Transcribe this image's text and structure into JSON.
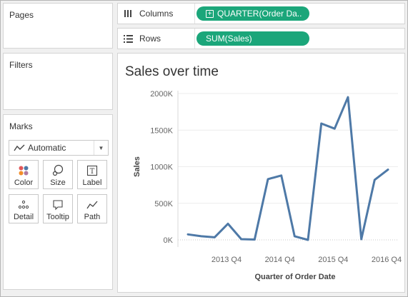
{
  "cards": {
    "pages": {
      "title": "Pages"
    },
    "filters": {
      "title": "Filters"
    },
    "marks": {
      "title": "Marks",
      "mark_type": {
        "label": "Automatic",
        "icon": "line-mark-icon"
      },
      "buttons": [
        {
          "label": "Color",
          "icon": "color-dots-icon"
        },
        {
          "label": "Size",
          "icon": "size-icon"
        },
        {
          "label": "Label",
          "icon": "label-icon"
        },
        {
          "label": "Detail",
          "icon": "detail-icon"
        },
        {
          "label": "Tooltip",
          "icon": "tooltip-icon"
        },
        {
          "label": "Path",
          "icon": "path-icon"
        }
      ]
    }
  },
  "shelves": {
    "columns": {
      "label": "Columns",
      "pill": "QUARTER(Order Da.."
    },
    "rows": {
      "label": "Rows",
      "pill": "SUM(Sales)"
    }
  },
  "colors": {
    "pill": "#1ba67a",
    "line": "#4e79a7",
    "card_border": "#d4d4d4",
    "background": "#f0f0f0"
  },
  "view": {
    "title": "Sales over time"
  },
  "chart_data": {
    "type": "line",
    "title": "Sales over time",
    "xlabel": "Quarter of Order Date",
    "ylabel": "Sales",
    "x": [
      "2013 Q1",
      "2013 Q2",
      "2013 Q3",
      "2013 Q4",
      "2014 Q1",
      "2014 Q2",
      "2014 Q3",
      "2014 Q4",
      "2015 Q1",
      "2015 Q2",
      "2015 Q3",
      "2015 Q4",
      "2016 Q1",
      "2016 Q2",
      "2016 Q3",
      "2016 Q4"
    ],
    "x_tick_labels": [
      "2013 Q4",
      "2014 Q4",
      "2015 Q4",
      "2016 Q4"
    ],
    "x_tick_positions": [
      3,
      7,
      11,
      15
    ],
    "y_ticks": [
      0,
      500000,
      1000000,
      1500000,
      2000000
    ],
    "y_tick_labels": [
      "0K",
      "500K",
      "1000K",
      "1500K",
      "2000K"
    ],
    "ylim": [
      0,
      2000000
    ],
    "series": [
      {
        "values": [
          75000,
          50000,
          35000,
          220000,
          10000,
          5000,
          830000,
          880000,
          50000,
          0,
          1590000,
          1520000,
          1950000,
          10000,
          820000,
          960000
        ]
      }
    ],
    "grid": true
  }
}
